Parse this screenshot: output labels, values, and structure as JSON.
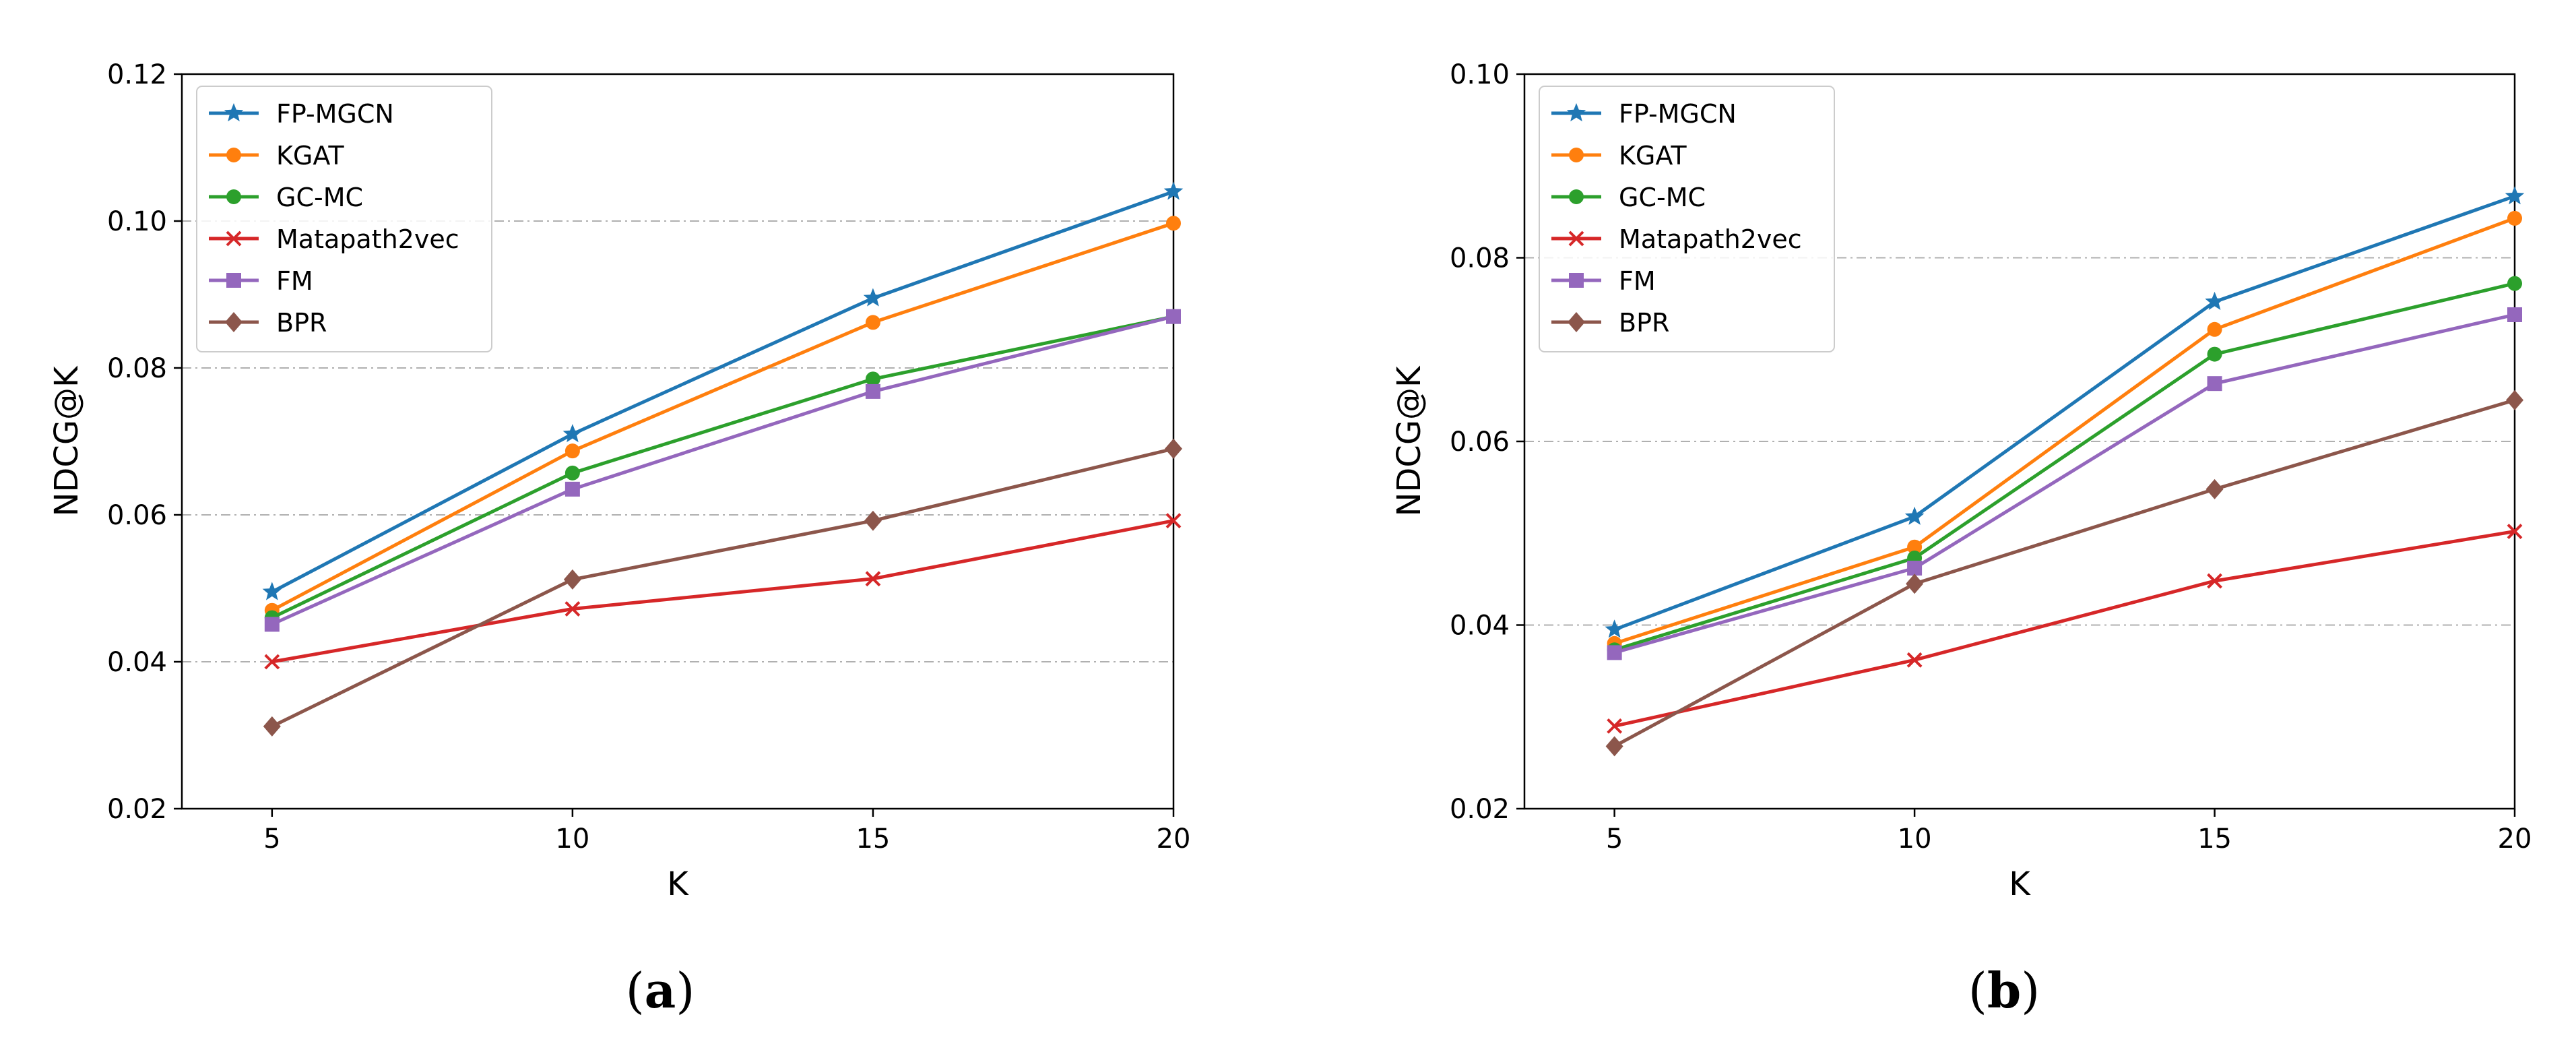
{
  "chart_data": [
    {
      "id": "a",
      "type": "line",
      "caption_open": "(",
      "caption_letter": "a",
      "caption_close": ")",
      "xlabel": "K",
      "ylabel": "NDCG@K",
      "x": [
        5,
        10,
        15,
        20
      ],
      "xticks": [
        "5",
        "10",
        "15",
        "20"
      ],
      "xlim": [
        3.5,
        20
      ],
      "ylim": [
        0.02,
        0.12
      ],
      "yticks": [
        0.02,
        0.04,
        0.06,
        0.08,
        0.1,
        0.12
      ],
      "ytick_labels": [
        "0.02",
        "0.04",
        "0.06",
        "0.08",
        "0.10",
        "0.12"
      ],
      "grid": "horizontal dash-dot",
      "legend_position": "top-left",
      "series": [
        {
          "name": "FP-MGCN",
          "color": "#1f77b4",
          "marker": "star",
          "values": [
            0.0495,
            0.071,
            0.0895,
            0.104
          ]
        },
        {
          "name": "KGAT",
          "color": "#ff7f0e",
          "marker": "circle",
          "values": [
            0.047,
            0.0687,
            0.0862,
            0.0997
          ]
        },
        {
          "name": "GC-MC",
          "color": "#2ca02c",
          "marker": "circle",
          "values": [
            0.046,
            0.0657,
            0.0785,
            0.087
          ]
        },
        {
          "name": "Matapath2vec",
          "color": "#d62728",
          "marker": "x",
          "values": [
            0.04,
            0.0472,
            0.0513,
            0.0592
          ]
        },
        {
          "name": "FM",
          "color": "#9467bd",
          "marker": "square",
          "values": [
            0.0451,
            0.0635,
            0.0768,
            0.087
          ]
        },
        {
          "name": "BPR",
          "color": "#8c564b",
          "marker": "diamond",
          "values": [
            0.0312,
            0.0512,
            0.0592,
            0.069
          ]
        }
      ]
    },
    {
      "id": "b",
      "type": "line",
      "caption_open": "(",
      "caption_letter": "b",
      "caption_close": ")",
      "xlabel": "K",
      "ylabel": "NDCG@K",
      "x": [
        5,
        10,
        15,
        20
      ],
      "xticks": [
        "5",
        "10",
        "15",
        "20"
      ],
      "xlim": [
        3.5,
        20
      ],
      "ylim": [
        0.02,
        0.1
      ],
      "yticks": [
        0.02,
        0.04,
        0.06,
        0.08,
        0.1
      ],
      "ytick_labels": [
        "0.02",
        "0.04",
        "0.06",
        "0.08",
        "0.10"
      ],
      "grid": "horizontal dash-dot",
      "legend_position": "top-left",
      "series": [
        {
          "name": "FP-MGCN",
          "color": "#1f77b4",
          "marker": "star",
          "values": [
            0.0395,
            0.0518,
            0.0752,
            0.0867
          ]
        },
        {
          "name": "KGAT",
          "color": "#ff7f0e",
          "marker": "circle",
          "values": [
            0.038,
            0.0485,
            0.0722,
            0.0843
          ]
        },
        {
          "name": "GC-MC",
          "color": "#2ca02c",
          "marker": "circle",
          "values": [
            0.0373,
            0.0473,
            0.0695,
            0.0772
          ]
        },
        {
          "name": "Matapath2vec",
          "color": "#d62728",
          "marker": "x",
          "values": [
            0.029,
            0.0362,
            0.0448,
            0.0502
          ]
        },
        {
          "name": "FM",
          "color": "#9467bd",
          "marker": "square",
          "values": [
            0.037,
            0.0462,
            0.0663,
            0.0738
          ]
        },
        {
          "name": "BPR",
          "color": "#8c564b",
          "marker": "diamond",
          "values": [
            0.0268,
            0.0445,
            0.0548,
            0.0645
          ]
        }
      ]
    }
  ]
}
